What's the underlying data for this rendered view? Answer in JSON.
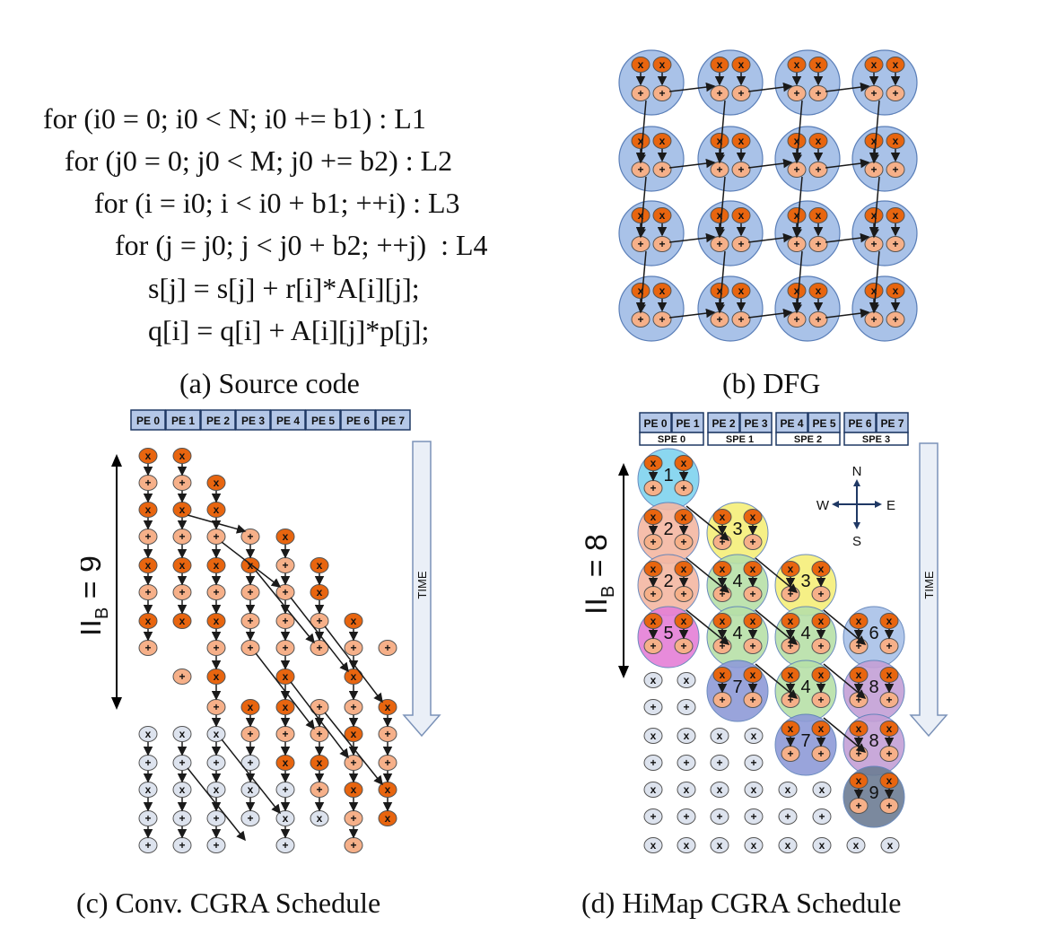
{
  "panels": {
    "a": {
      "code": [
        "for (i0 = 0; i0 < N; i0 += b1) : L1",
        "for (j0 = 0; j0 < M; j0 += b2) : L2",
        "for (i = i0; i < i0 + b1; ++i) : L3",
        "for (j = j0; j < j0 + b2; ++j)  : L4",
        "s[j] = s[j] + r[i]*A[i][j];",
        "q[i] = q[i] + A[i][j]*p[j];"
      ],
      "caption": "(a) Source code"
    },
    "b": {
      "caption": "(b) DFG"
    },
    "c": {
      "pe_labels": [
        "PE 0",
        "PE 1",
        "PE 2",
        "PE 3",
        "PE 4",
        "PE 5",
        "PE 6",
        "PE 7"
      ],
      "ii_label": "II",
      "ii_sub": "B",
      "ii_value": " = 9",
      "time_label": "TIME",
      "caption": "(c) Conv. CGRA Schedule"
    },
    "d": {
      "pe_labels": [
        "PE 0",
        "PE 1",
        "PE 2",
        "PE 3",
        "PE 4",
        "PE 5",
        "PE 6",
        "PE 7"
      ],
      "spe_labels": [
        "SPE 0",
        "SPE 1",
        "SPE 2",
        "SPE 3"
      ],
      "ii_label": "II",
      "ii_sub": "B",
      "ii_value": " = 8",
      "time_label": "TIME",
      "compass": {
        "n": "N",
        "s": "S",
        "w": "W",
        "e": "E"
      },
      "block_numbers": [
        "1",
        "2",
        "2",
        "5",
        "3",
        "4",
        "4",
        "7",
        "3",
        "4",
        "4",
        "7",
        "6",
        "8",
        "8",
        "9"
      ],
      "caption": "(d) HiMap CGRA Schedule"
    }
  },
  "colors": {
    "mul_node": "#e8650f",
    "add_node": "#f6b089",
    "inactive_node": "#dde3ee",
    "cluster": "#a9c2e8",
    "pe_header": "#b4c7e7",
    "arrow": "#1a1a1a"
  }
}
